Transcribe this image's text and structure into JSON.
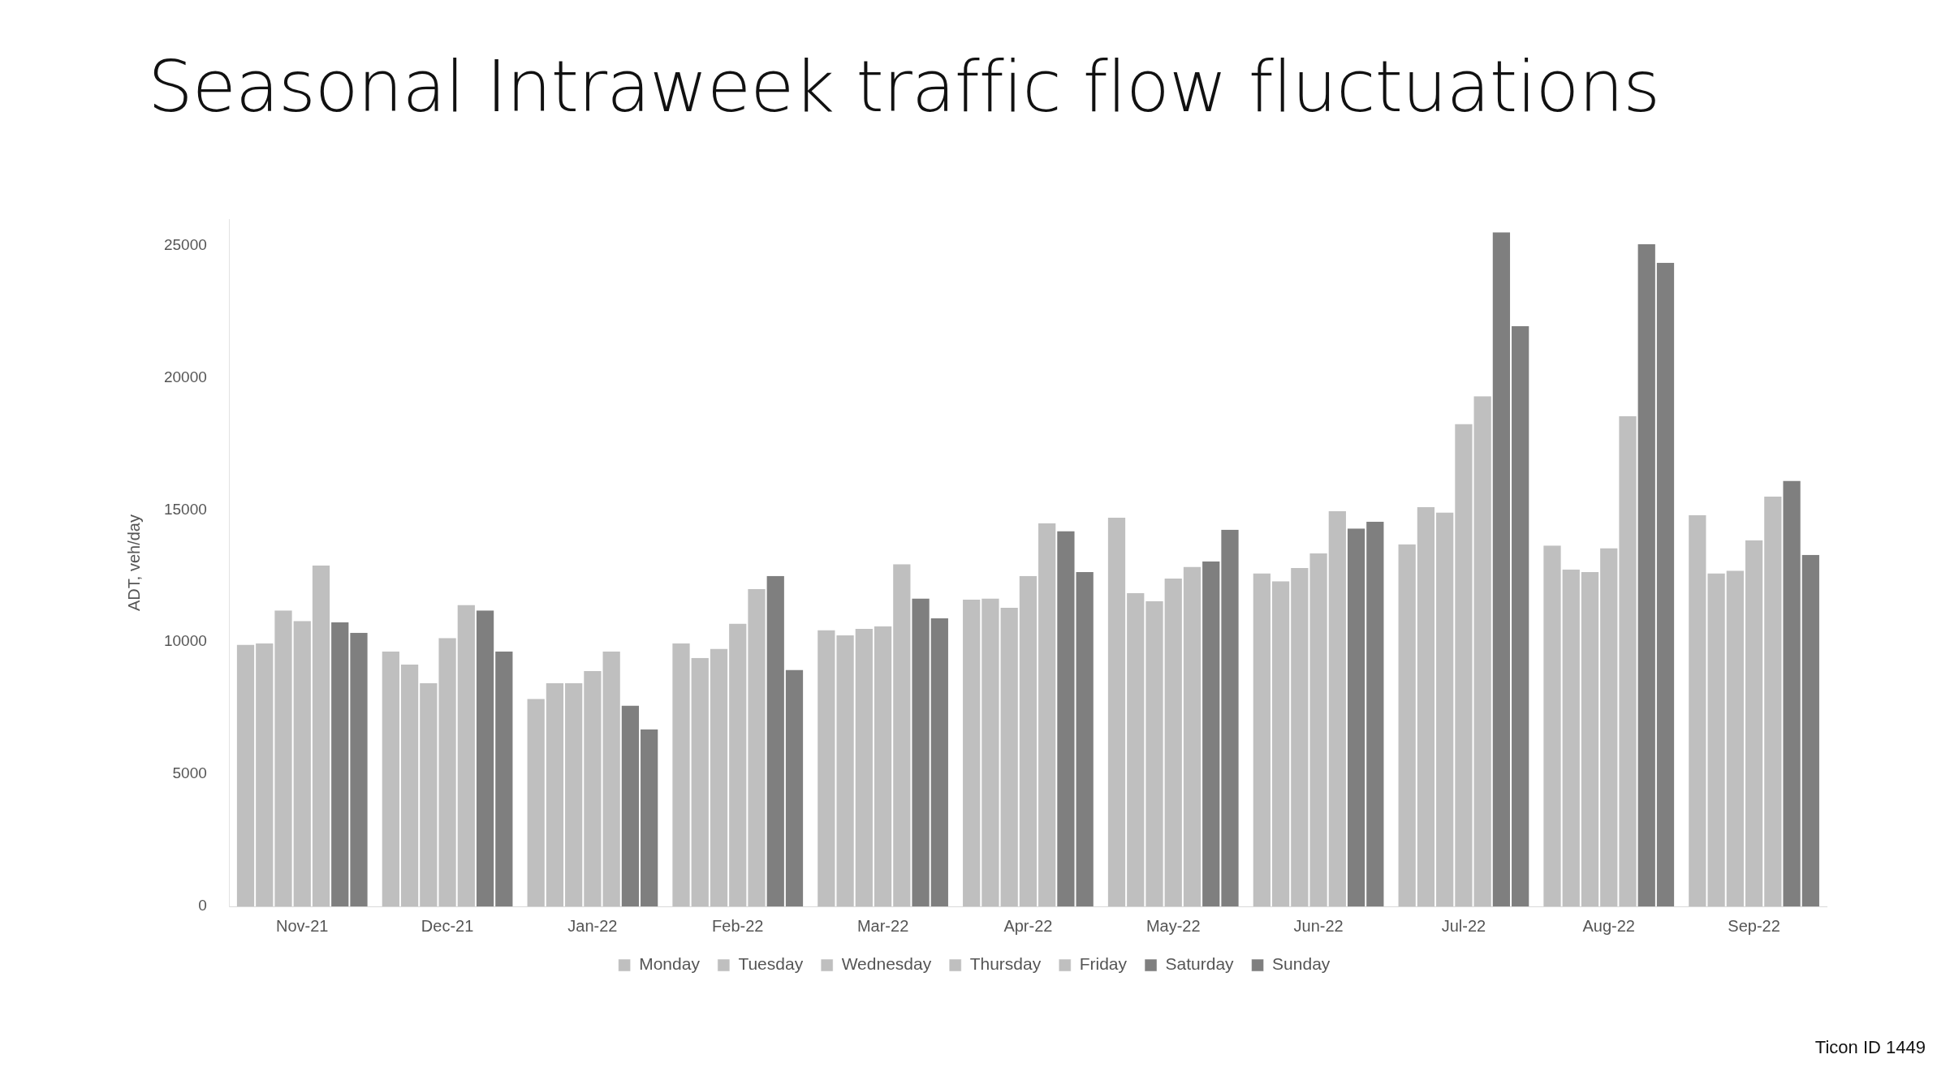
{
  "chart_data": {
    "type": "bar",
    "title": "Seasonal Intraweek traffic flow fluctuations",
    "ylabel": "ADT, veh/day",
    "categories": [
      "Nov-21",
      "Dec-21",
      "Jan-22",
      "Feb-22",
      "Mar-22",
      "Apr-22",
      "May-22",
      "Jun-22",
      "Jul-22",
      "Aug-22",
      "Sep-22"
    ],
    "series": [
      {
        "name": "Monday",
        "color": "#bfbfbf",
        "values": [
          9900,
          9650,
          7850,
          9950,
          10450,
          11600,
          14700,
          12600,
          13700,
          13650,
          14800
        ]
      },
      {
        "name": "Tuesday",
        "color": "#bfbfbf",
        "values": [
          9950,
          9150,
          8450,
          9400,
          10250,
          11650,
          11850,
          12300,
          15100,
          12750,
          12600
        ]
      },
      {
        "name": "Wednesday",
        "color": "#bfbfbf",
        "values": [
          11200,
          8450,
          8450,
          9750,
          10500,
          11300,
          11550,
          12800,
          14900,
          12650,
          12700
        ]
      },
      {
        "name": "Thursday",
        "color": "#bfbfbf",
        "values": [
          10800,
          10150,
          8900,
          10700,
          10600,
          12500,
          12400,
          13350,
          18250,
          13550,
          13850
        ]
      },
      {
        "name": "Friday",
        "color": "#bfbfbf",
        "values": [
          12900,
          11400,
          9650,
          12000,
          12950,
          14500,
          12850,
          14950,
          19300,
          18550,
          15500
        ]
      },
      {
        "name": "Saturday",
        "color": "#7f7f7f",
        "values": [
          10750,
          11200,
          7600,
          12500,
          11650,
          14200,
          13050,
          14300,
          25500,
          25050,
          16100
        ]
      },
      {
        "name": "Sunday",
        "color": "#7f7f7f",
        "values": [
          10350,
          9650,
          6700,
          8950,
          10900,
          12650,
          14250,
          14550,
          21950,
          24350,
          13300
        ]
      }
    ],
    "ylim": [
      0,
      26000
    ],
    "yticks": [
      0,
      5000,
      10000,
      15000,
      20000,
      25000
    ],
    "grid": false,
    "legend": "bottom",
    "annotations": [
      "Ticon ID 1449"
    ]
  }
}
